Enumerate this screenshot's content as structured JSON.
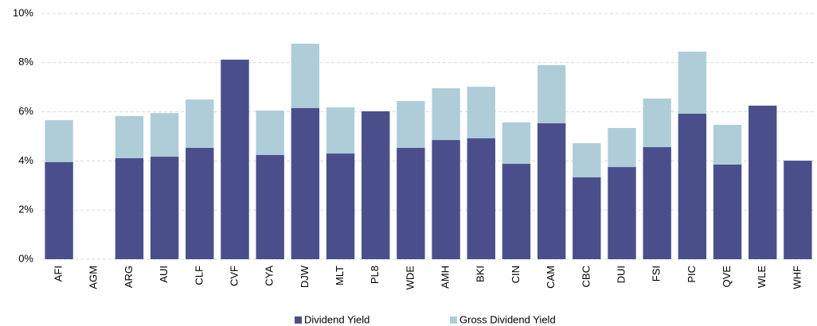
{
  "chart_data": {
    "type": "bar",
    "categories": [
      "AFI",
      "AGM",
      "ARG",
      "AUI",
      "CLF",
      "CVF",
      "CYA",
      "DJW",
      "MLT",
      "PL8",
      "WDE",
      "AMH",
      "BKI",
      "CIN",
      "CAM",
      "CBC",
      "DUI",
      "FSI",
      "PIC",
      "QVE",
      "WLE",
      "WHF"
    ],
    "series": [
      {
        "name": "Gross Dividend Yield",
        "color": "#aecdd9",
        "values": [
          5.66,
          null,
          5.83,
          5.95,
          6.5,
          8.12,
          6.05,
          8.77,
          6.18,
          6.02,
          6.44,
          6.96,
          7.02,
          5.57,
          7.9,
          4.72,
          5.34,
          6.54,
          8.45,
          5.47,
          6.25,
          4.01
        ]
      },
      {
        "name": "Dividend Yield",
        "color": "#4a4f8c",
        "values": [
          3.95,
          null,
          4.11,
          4.17,
          4.53,
          8.12,
          4.24,
          6.15,
          4.3,
          6.02,
          4.53,
          4.85,
          4.92,
          3.88,
          5.53,
          3.33,
          3.75,
          4.56,
          5.92,
          3.85,
          6.25,
          4.01
        ]
      }
    ],
    "ylim": [
      0,
      10
    ],
    "yticks": [
      {
        "value": 0,
        "label": "0%"
      },
      {
        "value": 2,
        "label": "2%"
      },
      {
        "value": 4,
        "label": "4%"
      },
      {
        "value": 6,
        "label": "6%"
      },
      {
        "value": 8,
        "label": "8%"
      },
      {
        "value": 10,
        "label": "10%"
      }
    ],
    "grid": true,
    "legend": "bottom"
  }
}
